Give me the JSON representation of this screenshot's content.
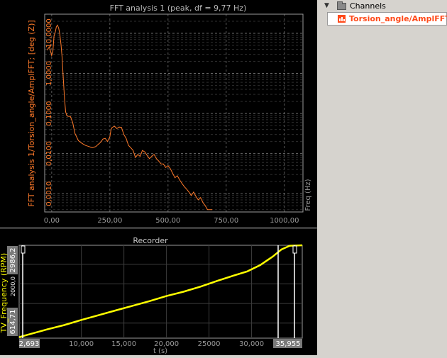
{
  "fft_panel": {
    "title": "FFT analysis 1 (peak, df = 9,77 Hz)",
    "ylabel": "FFT analysis 1/Torsion_angle/AmplFFT; [deg (Z)]",
    "xlabel": "Freq (Hz)",
    "line_color": "#ff7a2a",
    "axis_color": "#ff7a2a"
  },
  "recorder_panel": {
    "title": "Recorder",
    "ylabel": "TV_Frequency (RPM)",
    "xlabel": "t (s)",
    "y_top_readout": "2986,2",
    "y_bottom_readout": "614,71",
    "x_left_readout": "2,693",
    "x_right_readout": "35,955",
    "line_color": "#ffff00",
    "axis_color": "#ffff00"
  },
  "channels": {
    "header": "Channels",
    "items": [
      {
        "label": "Torsion_angle/AmplFFT",
        "color": "#ff4a1a"
      }
    ]
  },
  "chart_data": [
    {
      "type": "line",
      "title": "FFT analysis 1 (peak, df = 9,77 Hz)",
      "xlabel": "Freq (Hz)",
      "ylabel": "FFT analysis 1/Torsion_angle/AmplFFT; [deg (Z)]",
      "yscale": "log",
      "xlim": [
        -30,
        1080
      ],
      "ylim": [
        0.00035,
        30
      ],
      "x_ticks": [
        "0,00",
        "250,00",
        "500,00",
        "750,00",
        "1000,00"
      ],
      "x_tick_values": [
        0,
        250,
        500,
        750,
        1000
      ],
      "y_ticks": [
        "10,0000",
        "1,0000",
        "0,1000",
        "0,0100",
        "0,0010"
      ],
      "y_tick_values": [
        10,
        1,
        0.1,
        0.01,
        0.001
      ],
      "grid": true,
      "series": [
        {
          "x": [
            -20,
            -10,
            0,
            5,
            10,
            15,
            20,
            25,
            30,
            35,
            40,
            45,
            50,
            55,
            60,
            65,
            70,
            80,
            90,
            100,
            115,
            130,
            145,
            160,
            175,
            190,
            200,
            210,
            220,
            230,
            240,
            250,
            255,
            260,
            270,
            280,
            290,
            300,
            310,
            320,
            330,
            340,
            350,
            360,
            370,
            380,
            390,
            400,
            410,
            420,
            430,
            440,
            450,
            460,
            470,
            480,
            490,
            500,
            510,
            520,
            530,
            540,
            550,
            560,
            570,
            580,
            590,
            600,
            610,
            620,
            630,
            640,
            650,
            660,
            670,
            680,
            690
          ],
          "y": [
            3.8,
            4.6,
            2.8,
            3.5,
            8.5,
            10.5,
            14.5,
            16,
            13.5,
            9.5,
            5.2,
            2.4,
            0.75,
            0.24,
            0.11,
            0.088,
            0.085,
            0.085,
            0.06,
            0.032,
            0.021,
            0.018,
            0.016,
            0.015,
            0.014,
            0.015,
            0.017,
            0.019,
            0.023,
            0.024,
            0.02,
            0.026,
            0.04,
            0.045,
            0.048,
            0.042,
            0.046,
            0.045,
            0.03,
            0.024,
            0.016,
            0.014,
            0.012,
            0.008,
            0.0095,
            0.0085,
            0.012,
            0.011,
            0.009,
            0.0075,
            0.0085,
            0.0095,
            0.0075,
            0.0065,
            0.0055,
            0.0055,
            0.0045,
            0.005,
            0.0042,
            0.0032,
            0.0025,
            0.0028,
            0.0022,
            0.0018,
            0.0015,
            0.0013,
            0.0011,
            0.0009,
            0.0011,
            0.00085,
            0.0007,
            0.0008,
            0.0006,
            0.0005,
            0.0004,
            0.0004,
            0.0004
          ]
        }
      ]
    },
    {
      "type": "line",
      "title": "Recorder",
      "xlabel": "t (s)",
      "ylabel": "TV_Frequency (RPM)",
      "xlim": [
        2693,
        35955
      ],
      "ylim": [
        614.71,
        2986.2
      ],
      "x_ticks": [
        "10,000",
        "15,000",
        "20,000",
        "25000",
        "30,000"
      ],
      "x_tick_values": [
        10000,
        15000,
        20000,
        25000,
        30000
      ],
      "y_ticks": [
        "2000,0"
      ],
      "y_tick_values": [
        2000
      ],
      "grid": true,
      "series": [
        {
          "x": [
            2693,
            4000,
            6000,
            8000,
            10000,
            12000,
            14000,
            16000,
            18000,
            20000,
            22000,
            24000,
            26000,
            28000,
            29500,
            31000,
            32500,
            33500,
            34500,
            35955
          ],
          "y": [
            640,
            720,
            840,
            950,
            1080,
            1200,
            1320,
            1440,
            1560,
            1690,
            1800,
            1930,
            2080,
            2220,
            2320,
            2480,
            2700,
            2880,
            2975,
            2986
          ]
        }
      ]
    }
  ]
}
